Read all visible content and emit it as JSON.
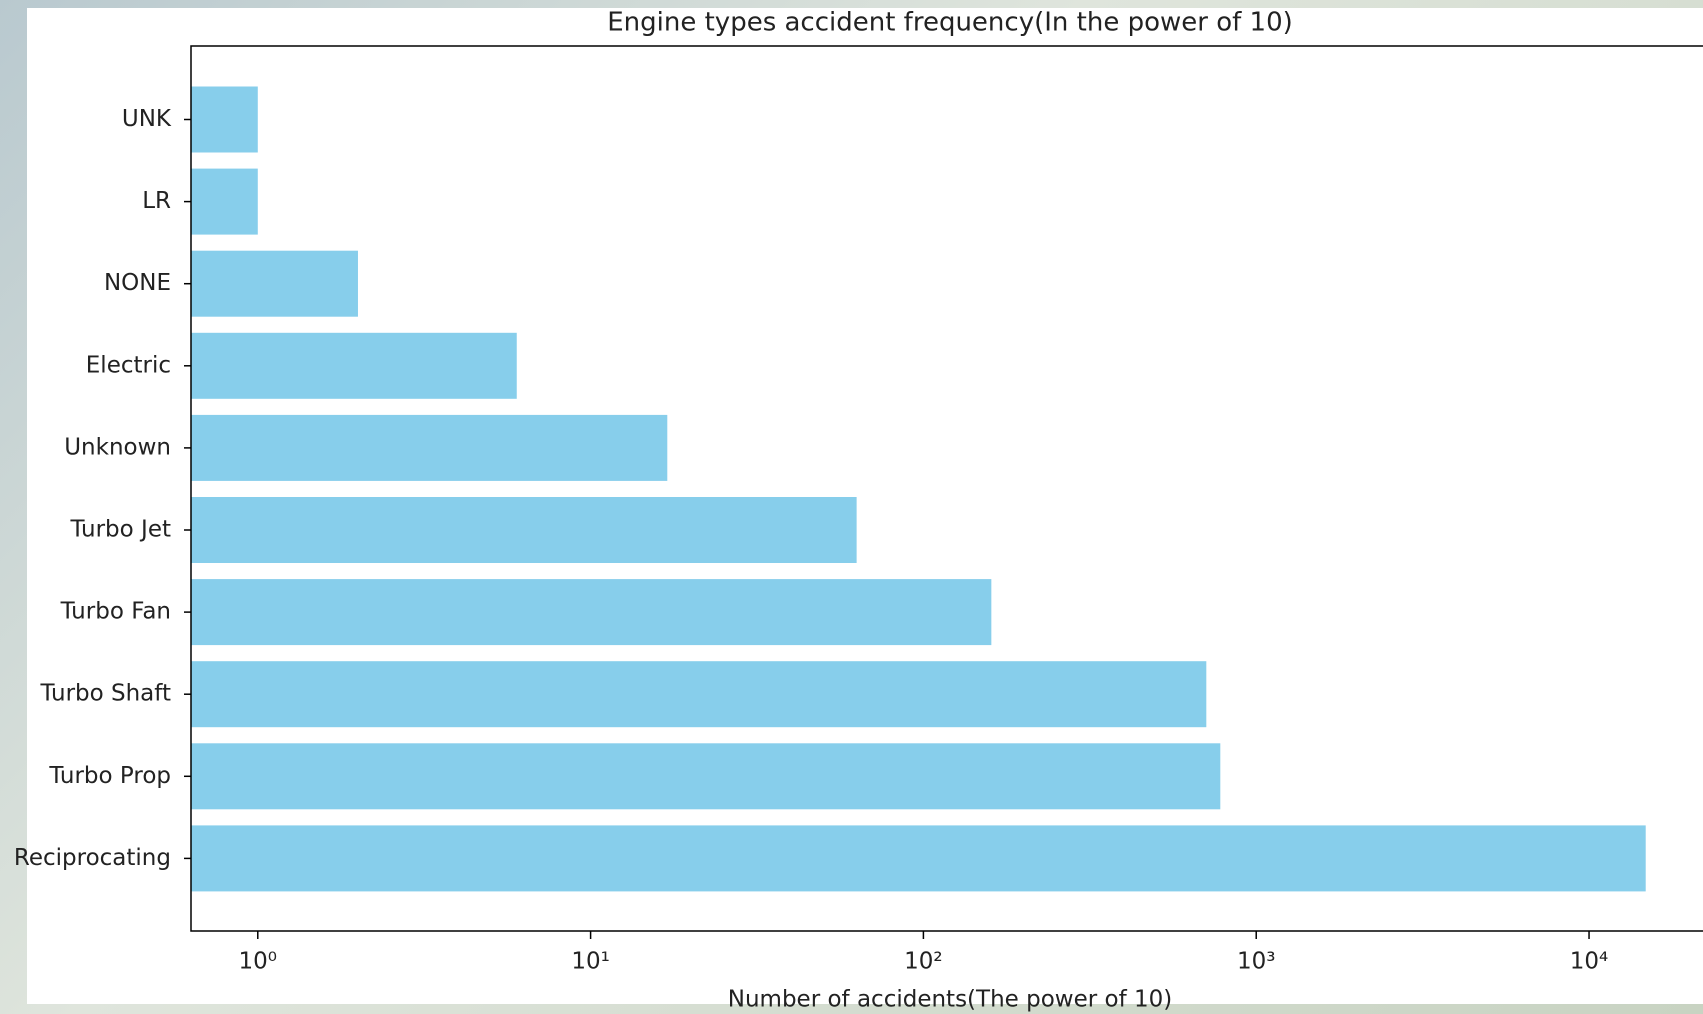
{
  "chart_data": {
    "type": "barh",
    "title": "Engine types accident frequency(In the power of 10)",
    "x_label": "Number of accidents(The power of 10)",
    "categories": [
      "UNK",
      "LR",
      "NONE",
      "Electric",
      "Unknown",
      "Turbo Jet",
      "Turbo Fan",
      "Turbo Shaft",
      "Turbo Prop",
      "Reciprocating"
    ],
    "values": [
      1,
      1,
      2,
      6,
      17,
      63,
      160,
      708,
      780,
      14800
    ],
    "color": "#87ceeb",
    "x_scale": "log",
    "xlim": [
      0.63,
      22000
    ],
    "xticks": [
      {
        "value": 1,
        "label": "10⁰"
      },
      {
        "value": 10,
        "label": "10¹"
      },
      {
        "value": 100,
        "label": "10²"
      },
      {
        "value": 1000,
        "label": "10³"
      },
      {
        "value": 10000,
        "label": "10⁴"
      }
    ]
  }
}
